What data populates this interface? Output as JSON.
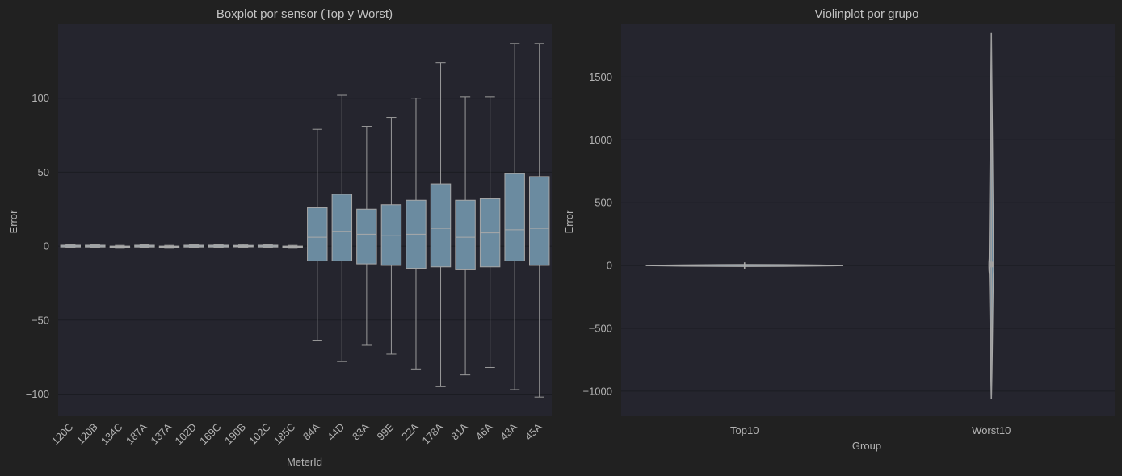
{
  "colors": {
    "figure_bg": "#212121",
    "axes_bg": "#25252e",
    "box_fill": "#6b8ba0",
    "line": "#9a9a9a",
    "text": "#b3b3b3"
  },
  "chart_data": [
    {
      "type": "boxplot",
      "title": "Boxplot por sensor (Top y Worst)",
      "xlabel": "MeterId",
      "ylabel": "Error",
      "ylim": [
        -115,
        150
      ],
      "yticks": [
        -100,
        -50,
        0,
        50,
        100
      ],
      "ytick_labels": [
        "−100",
        "−50",
        "0",
        "50",
        "100"
      ],
      "grid": true,
      "categories": [
        "120C",
        "120B",
        "134C",
        "187A",
        "137A",
        "102D",
        "169C",
        "190B",
        "102C",
        "185C",
        "84A",
        "44D",
        "83A",
        "99E",
        "22A",
        "178A",
        "81A",
        "46A",
        "43A",
        "45A"
      ],
      "boxes": [
        {
          "whislo": -1,
          "q1": -0.6,
          "med": 0,
          "q3": 0.6,
          "whishi": 1
        },
        {
          "whislo": -1,
          "q1": -0.6,
          "med": 0,
          "q3": 0.6,
          "whishi": 1
        },
        {
          "whislo": -1.5,
          "q1": -1,
          "med": -0.5,
          "q3": 0,
          "whishi": 0.5
        },
        {
          "whislo": -1,
          "q1": -0.6,
          "med": 0,
          "q3": 0.6,
          "whishi": 1
        },
        {
          "whislo": -1.5,
          "q1": -1,
          "med": -0.5,
          "q3": 0,
          "whishi": 0.5
        },
        {
          "whislo": -1,
          "q1": -0.6,
          "med": 0,
          "q3": 0.6,
          "whishi": 1
        },
        {
          "whislo": -1,
          "q1": -0.6,
          "med": 0,
          "q3": 0.6,
          "whishi": 1
        },
        {
          "whislo": -1,
          "q1": -0.5,
          "med": 0,
          "q3": 0.5,
          "whishi": 1
        },
        {
          "whislo": -1,
          "q1": -0.6,
          "med": 0,
          "q3": 0.6,
          "whishi": 1
        },
        {
          "whislo": -1.5,
          "q1": -1,
          "med": -0.5,
          "q3": 0,
          "whishi": 0.5
        },
        {
          "whislo": -64,
          "q1": -10,
          "med": 6,
          "q3": 26,
          "whishi": 79
        },
        {
          "whislo": -78,
          "q1": -10,
          "med": 10,
          "q3": 35,
          "whishi": 102
        },
        {
          "whislo": -67,
          "q1": -12,
          "med": 8,
          "q3": 25,
          "whishi": 81
        },
        {
          "whislo": -73,
          "q1": -13,
          "med": 7,
          "q3": 28,
          "whishi": 87
        },
        {
          "whislo": -83,
          "q1": -15,
          "med": 8,
          "q3": 31,
          "whishi": 100
        },
        {
          "whislo": -95,
          "q1": -14,
          "med": 12,
          "q3": 42,
          "whishi": 124
        },
        {
          "whislo": -87,
          "q1": -16,
          "med": 6,
          "q3": 31,
          "whishi": 101
        },
        {
          "whislo": -82,
          "q1": -14,
          "med": 9,
          "q3": 32,
          "whishi": 101
        },
        {
          "whislo": -97,
          "q1": -10,
          "med": 11,
          "q3": 49,
          "whishi": 137
        },
        {
          "whislo": -102,
          "q1": -13,
          "med": 12,
          "q3": 47,
          "whishi": 137
        }
      ]
    },
    {
      "type": "violin",
      "title": "Violinplot por grupo",
      "xlabel": "Group",
      "ylabel": "Error",
      "ylim": [
        -1200,
        1920
      ],
      "yticks": [
        -1000,
        -500,
        0,
        500,
        1000,
        1500
      ],
      "ytick_labels": [
        "−1000",
        "−500",
        "0",
        "500",
        "1000",
        "1500"
      ],
      "grid": true,
      "categories": [
        "Top10",
        "Worst10"
      ],
      "groups": [
        {
          "name": "Top10",
          "min": -25,
          "q1": -2,
          "median": 0,
          "q3": 2,
          "max": 25
        },
        {
          "name": "Worst10",
          "min": -1060,
          "q1": -15,
          "median": 5,
          "q3": 30,
          "max": 1850
        }
      ]
    }
  ]
}
